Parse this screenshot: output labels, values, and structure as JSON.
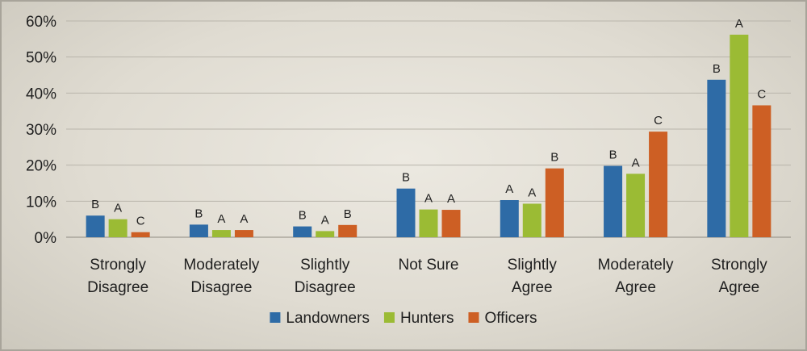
{
  "chart_data": {
    "type": "bar",
    "categories": [
      [
        "Strongly",
        "Disagree"
      ],
      [
        "Moderately",
        "Disagree"
      ],
      [
        "Slightly",
        "Disagree"
      ],
      [
        "Not Sure"
      ],
      [
        "Slightly",
        "Agree"
      ],
      [
        "Moderately",
        "Agree"
      ],
      [
        "Strongly",
        "Agree"
      ]
    ],
    "y_ticks": [
      "0%",
      "10%",
      "20%",
      "30%",
      "40%",
      "50%",
      "60%"
    ],
    "ylim": [
      0,
      60
    ],
    "y_unit": "%",
    "grid": true,
    "legend_position": "bottom",
    "series": [
      {
        "name": "Landowners",
        "color": "#2e6ba6",
        "values": [
          6,
          3.5,
          3,
          13.5,
          10.3,
          19.8,
          43.7
        ],
        "labels": [
          "B",
          "B",
          "B",
          "B",
          "A",
          "B",
          "B"
        ]
      },
      {
        "name": "Hunters",
        "color": "#9bbb34",
        "values": [
          5,
          2,
          1.7,
          7.7,
          9.3,
          17.6,
          56.2
        ],
        "labels": [
          "A",
          "A",
          "A",
          "A",
          "A",
          "A",
          "A"
        ]
      },
      {
        "name": "Officers",
        "color": "#cd5f24",
        "values": [
          1.4,
          2,
          3.4,
          7.6,
          19.1,
          29.3,
          36.6
        ],
        "labels": [
          "C",
          "A",
          "B",
          "A",
          "B",
          "C",
          "C"
        ]
      }
    ]
  }
}
